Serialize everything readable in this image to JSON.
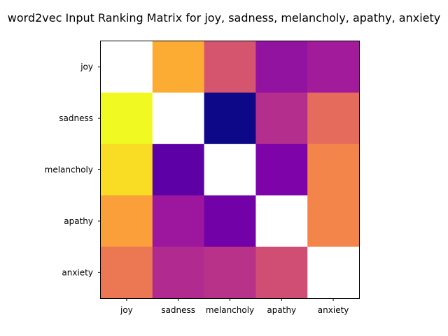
{
  "chart_data": {
    "type": "heatmap",
    "title": "word2vec Input Ranking Matrix for joy, sadness, melancholy, apathy, anxiety",
    "xlabel": "",
    "ylabel": "",
    "x_categories": [
      "joy",
      "sadness",
      "melancholy",
      "apathy",
      "anxiety"
    ],
    "y_categories": [
      "joy",
      "sadness",
      "melancholy",
      "apathy",
      "anxiety"
    ],
    "colormap": "plasma",
    "value_range": [
      0,
      1
    ],
    "diagonal": "blank",
    "legend": "none",
    "grid": false,
    "cell_values": [
      [
        null,
        0.78,
        0.53,
        0.24,
        0.3
      ],
      [
        0.98,
        null,
        0.0,
        0.42,
        0.6
      ],
      [
        0.92,
        0.12,
        null,
        0.18,
        0.66
      ],
      [
        0.74,
        0.3,
        0.17,
        null,
        0.66
      ],
      [
        0.63,
        0.4,
        0.41,
        0.51,
        null
      ]
    ],
    "cell_colors": [
      [
        null,
        "#fdac33",
        "#d5546e",
        "#9313a1",
        "#a11b9b"
      ],
      [
        null,
        "#f0f921",
        null,
        "#0d0887",
        "#b42e8d"
      ],
      [
        null,
        "#f9dd25",
        "#5d01a6",
        null,
        "#7e03a8"
      ],
      [
        null,
        "#fa9f3a",
        "#9c179e",
        "#7201a8",
        null
      ],
      [
        null,
        "#ec7853",
        "#b12a90",
        "#b83289",
        "#d04d73"
      ]
    ],
    "cell_colors_row_order": "see colors_by_row",
    "colors_by_row": [
      [
        null,
        "#fdac33",
        "#d5546e",
        "#9313a1",
        "#a11b9b"
      ],
      [
        "#f0f921",
        null,
        "#0d0887",
        "#b42e8d",
        "#e56b5d"
      ],
      [
        "#f9dd25",
        "#5d01a6",
        null,
        "#7e03a8",
        "#f3854b"
      ],
      [
        "#fa9f3a",
        "#9c179e",
        "#7201a8",
        null,
        "#f3854b"
      ],
      [
        "#ec7853",
        "#b12a90",
        "#b83289",
        "#d04d73",
        null
      ]
    ]
  }
}
